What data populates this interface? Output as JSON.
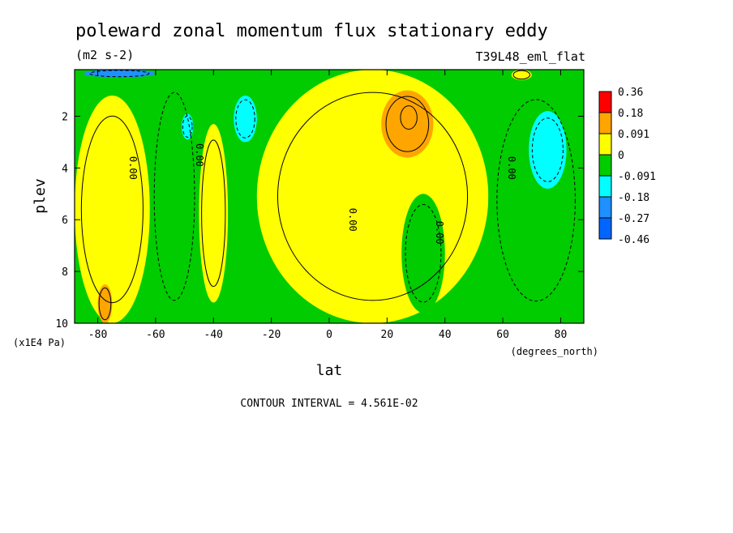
{
  "chart_data": {
    "type": "heatmap",
    "title": "poleward zonal momentum flux stationary eddy",
    "units": "(m2 s-2)",
    "run_label": "T39L48_eml_flat",
    "xlabel": "lat",
    "x_units": "(degrees_north)",
    "ylabel": "plev",
    "y_units": "(x1E4 Pa)",
    "xlim": [
      -88,
      88
    ],
    "ylim": [
      10,
      0.2
    ],
    "x_ticks": [
      -80,
      -60,
      -40,
      -20,
      0,
      20,
      40,
      60,
      80
    ],
    "y_ticks": [
      2,
      4,
      6,
      8,
      10
    ],
    "footer": "CONTOUR INTERVAL = 4.561E-02",
    "contour_interval": 0.04561,
    "contour_labels": [
      "0.00",
      "0.00",
      "0.00",
      "0.00",
      "0.00"
    ],
    "colorbar": {
      "levels": [
        "0.36",
        "0.18",
        "0.091",
        "0",
        "-0.091",
        "-0.18",
        "-0.27",
        "-0.46"
      ],
      "colors": [
        "#ff0000",
        "#ffa500",
        "#ffff00",
        "#00cc00",
        "#00ffff",
        "#1e90ff",
        "#0066ff"
      ]
    },
    "regions": [
      {
        "sign": "positive",
        "value": 0.09,
        "lat": [
          -88,
          -62
        ],
        "plev": [
          1.2,
          10
        ]
      },
      {
        "sign": "positive",
        "value": 0.14,
        "lat": [
          -80,
          -75
        ],
        "plev": [
          8.5,
          10
        ]
      },
      {
        "sign": "negative",
        "value": -0.05,
        "lat": [
          -62,
          -45
        ],
        "plev": [
          0.2,
          10
        ]
      },
      {
        "sign": "negative",
        "value": -0.18,
        "lat": [
          -33,
          -25
        ],
        "plev": [
          1.2,
          3.0
        ]
      },
      {
        "sign": "negative",
        "value": -0.27,
        "lat": [
          -85,
          -60
        ],
        "plev": [
          0.2,
          0.5
        ]
      },
      {
        "sign": "negative",
        "value": -0.12,
        "lat": [
          -51,
          -47
        ],
        "plev": [
          1.9,
          2.9
        ]
      },
      {
        "sign": "positive",
        "value": 0.05,
        "lat": [
          -45,
          -35
        ],
        "plev": [
          2.3,
          9.2
        ]
      },
      {
        "sign": "positive",
        "value": 0.06,
        "lat": [
          -25,
          55
        ],
        "plev": [
          0.2,
          10
        ]
      },
      {
        "sign": "positive",
        "value": 0.36,
        "lat": [
          24,
          31
        ],
        "plev": [
          1.5,
          2.6
        ]
      },
      {
        "sign": "positive",
        "value": 0.18,
        "lat": [
          18,
          36
        ],
        "plev": [
          1.0,
          3.6
        ]
      },
      {
        "sign": "negative",
        "value": -0.05,
        "lat": [
          25,
          40
        ],
        "plev": [
          5.0,
          9.6
        ]
      },
      {
        "sign": "negative",
        "value": -0.04,
        "lat": [
          55,
          88
        ],
        "plev": [
          0.5,
          10
        ]
      },
      {
        "sign": "negative",
        "value": -0.18,
        "lat": [
          69,
          82
        ],
        "plev": [
          1.8,
          4.8
        ]
      },
      {
        "sign": "positive",
        "value": 0.09,
        "lat": [
          63,
          70
        ],
        "plev": [
          0.2,
          0.6
        ]
      }
    ]
  }
}
